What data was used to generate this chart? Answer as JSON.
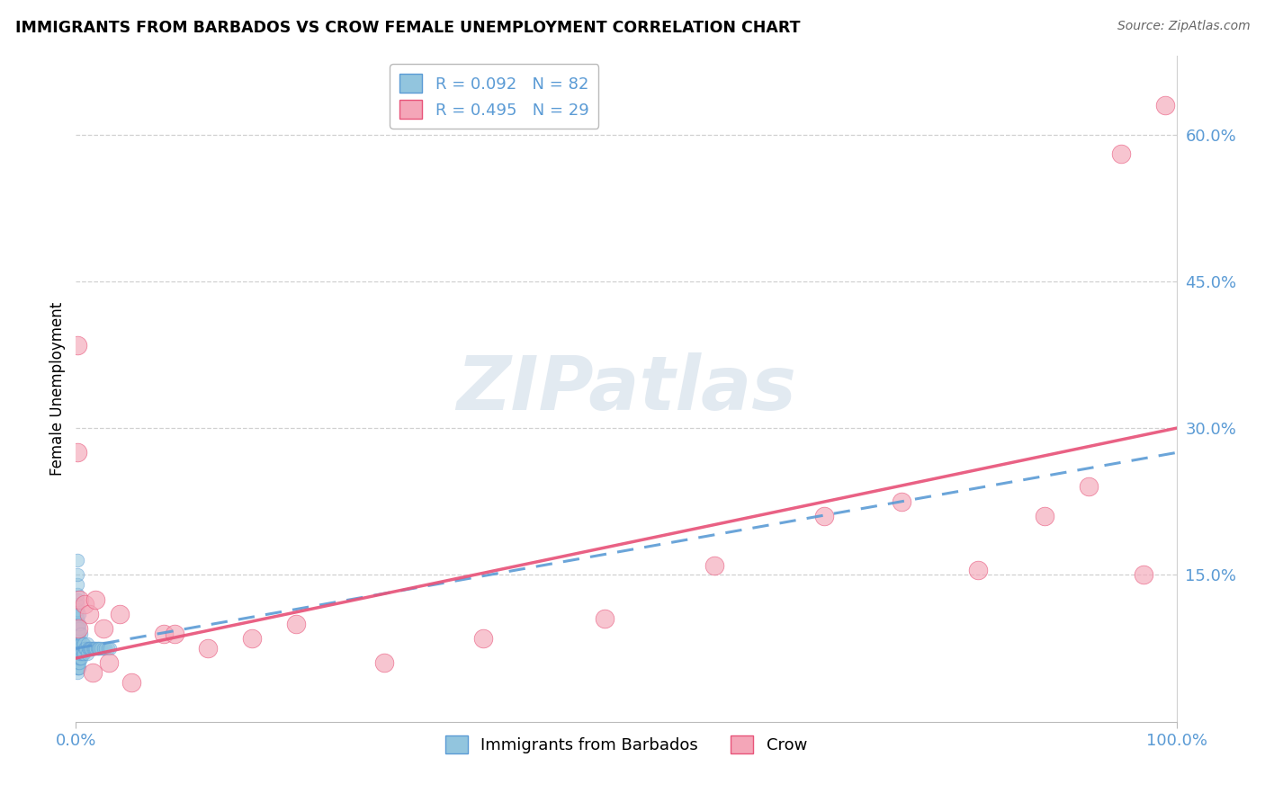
{
  "title": "IMMIGRANTS FROM BARBADOS VS CROW FEMALE UNEMPLOYMENT CORRELATION CHART",
  "source": "Source: ZipAtlas.com",
  "ylabel_label": "Female Unemployment",
  "legend_labels": [
    "Immigrants from Barbados",
    "Crow"
  ],
  "legend_r1": "R = 0.092",
  "legend_n1": "N = 82",
  "legend_r2": "R = 0.495",
  "legend_n2": "N = 29",
  "blue_color": "#92c5de",
  "pink_color": "#f4a6b8",
  "blue_line_color": "#5b9bd5",
  "pink_line_color": "#e8547a",
  "tick_color": "#5b9bd5",
  "grid_color": "#d0d0d0",
  "watermark_color": "#d0dce8",
  "blue_scatter_x": [
    0.0,
    0.0,
    0.0,
    0.0,
    0.0,
    0.0,
    0.0,
    0.0,
    0.0,
    0.0,
    0.001,
    0.001,
    0.001,
    0.001,
    0.001,
    0.001,
    0.001,
    0.001,
    0.001,
    0.001,
    0.001,
    0.001,
    0.001,
    0.001,
    0.001,
    0.001,
    0.001,
    0.001,
    0.001,
    0.001,
    0.002,
    0.002,
    0.002,
    0.002,
    0.002,
    0.002,
    0.002,
    0.002,
    0.002,
    0.002,
    0.003,
    0.003,
    0.003,
    0.003,
    0.003,
    0.003,
    0.003,
    0.003,
    0.003,
    0.003,
    0.004,
    0.004,
    0.004,
    0.004,
    0.005,
    0.005,
    0.005,
    0.005,
    0.006,
    0.006,
    0.007,
    0.007,
    0.008,
    0.009,
    0.01,
    0.01,
    0.011,
    0.012,
    0.013,
    0.014,
    0.015,
    0.016,
    0.017,
    0.018,
    0.019,
    0.02,
    0.021,
    0.023,
    0.025,
    0.027,
    0.029,
    0.031
  ],
  "blue_scatter_y": [
    0.06,
    0.065,
    0.07,
    0.075,
    0.08,
    0.085,
    0.09,
    0.095,
    0.1,
    0.105,
    0.05,
    0.055,
    0.06,
    0.065,
    0.07,
    0.075,
    0.08,
    0.085,
    0.09,
    0.095,
    0.1,
    0.105,
    0.11,
    0.115,
    0.12,
    0.125,
    0.13,
    0.14,
    0.15,
    0.165,
    0.055,
    0.06,
    0.065,
    0.07,
    0.075,
    0.08,
    0.085,
    0.09,
    0.095,
    0.1,
    0.055,
    0.06,
    0.065,
    0.07,
    0.075,
    0.08,
    0.09,
    0.095,
    0.1,
    0.11,
    0.065,
    0.07,
    0.075,
    0.08,
    0.065,
    0.07,
    0.08,
    0.09,
    0.07,
    0.08,
    0.07,
    0.08,
    0.075,
    0.075,
    0.07,
    0.08,
    0.075,
    0.075,
    0.075,
    0.075,
    0.075,
    0.075,
    0.075,
    0.075,
    0.075,
    0.075,
    0.075,
    0.075,
    0.075,
    0.075,
    0.075,
    0.075
  ],
  "pink_scatter_x": [
    0.001,
    0.001,
    0.003,
    0.008,
    0.012,
    0.018,
    0.025,
    0.03,
    0.05,
    0.08,
    0.12,
    0.16,
    0.2,
    0.28,
    0.37,
    0.48,
    0.58,
    0.68,
    0.75,
    0.82,
    0.88,
    0.92,
    0.95,
    0.97,
    0.99,
    0.002,
    0.015,
    0.04,
    0.09
  ],
  "pink_scatter_y": [
    0.385,
    0.275,
    0.125,
    0.12,
    0.11,
    0.125,
    0.095,
    0.06,
    0.04,
    0.09,
    0.075,
    0.085,
    0.1,
    0.06,
    0.085,
    0.105,
    0.16,
    0.21,
    0.225,
    0.155,
    0.21,
    0.24,
    0.58,
    0.15,
    0.63,
    0.095,
    0.05,
    0.11,
    0.09
  ],
  "xlim": [
    0.0,
    1.0
  ],
  "ylim": [
    0.0,
    0.68
  ],
  "yticks": [
    0.15,
    0.3,
    0.45,
    0.6
  ],
  "ytick_labels": [
    "15.0%",
    "30.0%",
    "45.0%",
    "60.0%"
  ],
  "xticks": [
    0.0,
    1.0
  ],
  "xtick_labels": [
    "0.0%",
    "100.0%"
  ],
  "blue_trend_slope": 0.2,
  "blue_trend_intercept": 0.075,
  "pink_trend_slope": 0.235,
  "pink_trend_intercept": 0.065
}
